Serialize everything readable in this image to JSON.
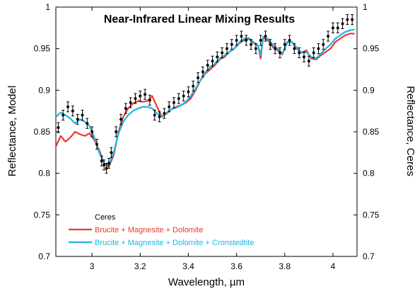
{
  "chart_data": {
    "type": "line",
    "title": "Near-Infrared Linear Mixing Results",
    "xlabel": "Wavelength, µm",
    "ylabel_left": "Reflectance, Model",
    "ylabel_right": "Reflectance, Ceres",
    "xlim": [
      2.85,
      4.1
    ],
    "ylim": [
      0.7,
      1.0
    ],
    "x_ticks": [
      3,
      3.2,
      3.4,
      3.6,
      3.8,
      4
    ],
    "x_tick_labels": [
      "3",
      "3.2",
      "3.4",
      "3.6",
      "3.8",
      "4"
    ],
    "y_ticks": [
      0.7,
      0.75,
      0.8,
      0.85,
      0.9,
      0.95,
      1
    ],
    "y_tick_labels": [
      "0.7",
      "0.75",
      "0.8",
      "0.85",
      "0.9",
      "0.95",
      "1"
    ],
    "grid": false,
    "legend_position": "bottom-left",
    "series": [
      {
        "name": "Ceres",
        "kind": "scatter-errorbar",
        "color": "#000000",
        "x": [
          2.86,
          2.88,
          2.9,
          2.92,
          2.94,
          2.96,
          2.98,
          3.0,
          3.02,
          3.04,
          3.05,
          3.06,
          3.07,
          3.08,
          3.1,
          3.12,
          3.14,
          3.16,
          3.18,
          3.2,
          3.22,
          3.24,
          3.26,
          3.28,
          3.3,
          3.32,
          3.34,
          3.36,
          3.38,
          3.4,
          3.42,
          3.44,
          3.46,
          3.48,
          3.5,
          3.52,
          3.54,
          3.56,
          3.58,
          3.6,
          3.62,
          3.64,
          3.66,
          3.68,
          3.7,
          3.72,
          3.74,
          3.76,
          3.78,
          3.8,
          3.82,
          3.84,
          3.86,
          3.88,
          3.9,
          3.92,
          3.94,
          3.96,
          3.98,
          4.0,
          4.02,
          4.04,
          4.06,
          4.08
        ],
        "y": [
          0.855,
          0.87,
          0.88,
          0.875,
          0.865,
          0.87,
          0.86,
          0.85,
          0.835,
          0.815,
          0.81,
          0.806,
          0.812,
          0.825,
          0.85,
          0.865,
          0.878,
          0.885,
          0.89,
          0.893,
          0.895,
          0.888,
          0.87,
          0.868,
          0.872,
          0.88,
          0.885,
          0.89,
          0.893,
          0.898,
          0.905,
          0.915,
          0.922,
          0.93,
          0.935,
          0.94,
          0.945,
          0.95,
          0.955,
          0.96,
          0.965,
          0.96,
          0.955,
          0.95,
          0.96,
          0.965,
          0.955,
          0.95,
          0.945,
          0.955,
          0.96,
          0.95,
          0.945,
          0.94,
          0.935,
          0.945,
          0.95,
          0.955,
          0.965,
          0.975,
          0.975,
          0.98,
          0.985,
          0.985
        ],
        "err": 0.006
      },
      {
        "name": "Brucite + Magnesite + Dolomite",
        "kind": "line",
        "color": "#e8392a",
        "x": [
          2.85,
          2.87,
          2.89,
          2.91,
          2.93,
          2.95,
          2.97,
          2.99,
          3.01,
          3.03,
          3.05,
          3.07,
          3.09,
          3.11,
          3.13,
          3.15,
          3.17,
          3.19,
          3.21,
          3.23,
          3.25,
          3.27,
          3.29,
          3.31,
          3.33,
          3.35,
          3.37,
          3.39,
          3.41,
          3.43,
          3.45,
          3.47,
          3.49,
          3.51,
          3.53,
          3.55,
          3.57,
          3.59,
          3.61,
          3.63,
          3.65,
          3.67,
          3.69,
          3.7,
          3.71,
          3.73,
          3.75,
          3.77,
          3.79,
          3.81,
          3.83,
          3.85,
          3.87,
          3.89,
          3.91,
          3.93,
          3.95,
          3.97,
          3.99,
          4.01,
          4.03,
          4.05,
          4.07,
          4.09
        ],
        "y": [
          0.832,
          0.845,
          0.838,
          0.843,
          0.85,
          0.847,
          0.845,
          0.848,
          0.84,
          0.828,
          0.812,
          0.808,
          0.822,
          0.85,
          0.868,
          0.878,
          0.884,
          0.887,
          0.886,
          0.887,
          0.893,
          0.88,
          0.868,
          0.872,
          0.877,
          0.88,
          0.882,
          0.885,
          0.89,
          0.9,
          0.912,
          0.92,
          0.925,
          0.93,
          0.937,
          0.94,
          0.946,
          0.95,
          0.956,
          0.96,
          0.962,
          0.957,
          0.953,
          0.938,
          0.963,
          0.96,
          0.952,
          0.948,
          0.943,
          0.958,
          0.958,
          0.95,
          0.945,
          0.948,
          0.938,
          0.937,
          0.942,
          0.946,
          0.95,
          0.958,
          0.962,
          0.966,
          0.968,
          0.968
        ]
      },
      {
        "name": "Brucite + Magnesite + Dolomite + Cronstedtite",
        "kind": "line",
        "color": "#1fb3e0",
        "x": [
          2.85,
          2.87,
          2.89,
          2.91,
          2.93,
          2.95,
          2.97,
          2.99,
          3.01,
          3.03,
          3.05,
          3.07,
          3.09,
          3.11,
          3.13,
          3.15,
          3.17,
          3.19,
          3.21,
          3.23,
          3.25,
          3.27,
          3.29,
          3.31,
          3.33,
          3.35,
          3.37,
          3.39,
          3.41,
          3.43,
          3.45,
          3.47,
          3.49,
          3.51,
          3.53,
          3.55,
          3.57,
          3.59,
          3.61,
          3.63,
          3.65,
          3.67,
          3.69,
          3.7,
          3.71,
          3.73,
          3.75,
          3.77,
          3.79,
          3.81,
          3.83,
          3.85,
          3.87,
          3.89,
          3.91,
          3.93,
          3.95,
          3.97,
          3.99,
          4.01,
          4.03,
          4.05,
          4.07,
          4.09
        ],
        "y": [
          0.868,
          0.873,
          0.87,
          0.866,
          0.86,
          0.865,
          0.862,
          0.857,
          0.843,
          0.825,
          0.812,
          0.81,
          0.825,
          0.848,
          0.862,
          0.87,
          0.875,
          0.878,
          0.88,
          0.88,
          0.878,
          0.872,
          0.868,
          0.873,
          0.877,
          0.879,
          0.882,
          0.886,
          0.893,
          0.902,
          0.912,
          0.921,
          0.928,
          0.932,
          0.938,
          0.942,
          0.946,
          0.95,
          0.957,
          0.962,
          0.963,
          0.958,
          0.953,
          0.942,
          0.964,
          0.962,
          0.955,
          0.95,
          0.944,
          0.957,
          0.958,
          0.951,
          0.945,
          0.946,
          0.94,
          0.938,
          0.944,
          0.95,
          0.955,
          0.962,
          0.966,
          0.97,
          0.972,
          0.973
        ]
      }
    ]
  }
}
